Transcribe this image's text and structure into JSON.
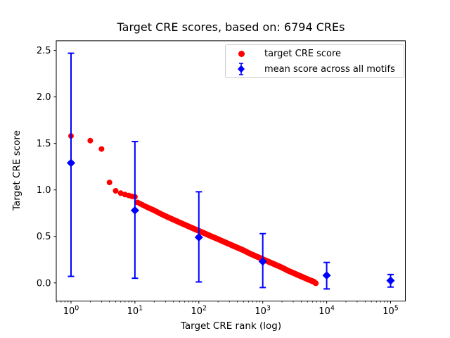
{
  "figure": {
    "background": "#ffffff",
    "spine_color": "#000000",
    "legend_border_color": "#cccccc"
  },
  "chart_data": {
    "type": "scatter",
    "title": "Target CRE scores, based on: 6794 CREs",
    "xlabel": "Target CRE rank (log)",
    "ylabel": "Target CRE score",
    "x_scale": "log",
    "grid": false,
    "legend_position": "upper right",
    "n_cres": 6794,
    "xlim_log10": [
      -0.231,
      5.231
    ],
    "ylim": [
      -0.195,
      2.604
    ],
    "x_tick_base": "10",
    "x_tick_exponents": [
      0,
      1,
      2,
      3,
      4,
      5
    ],
    "y_tick_labels": [
      "0.0",
      "0.5",
      "1.0",
      "1.5",
      "2.0",
      "2.5"
    ],
    "series": [
      {
        "name": "target CRE score",
        "marker": "circle",
        "color": "#ff0000",
        "total_points": 6794,
        "x_range": [
          1,
          6794
        ],
        "anchor_points": [
          [
            1,
            1.58
          ],
          [
            2,
            1.53
          ],
          [
            3,
            1.44
          ],
          [
            4,
            1.08
          ],
          [
            5,
            0.99
          ],
          [
            6,
            0.965
          ],
          [
            7,
            0.95
          ],
          [
            8,
            0.94
          ],
          [
            9,
            0.93
          ],
          [
            10,
            0.925
          ],
          [
            11,
            0.865
          ],
          [
            13,
            0.84
          ],
          [
            16,
            0.81
          ],
          [
            20,
            0.78
          ],
          [
            25,
            0.745
          ],
          [
            32,
            0.71
          ],
          [
            40,
            0.68
          ],
          [
            50,
            0.65
          ],
          [
            63,
            0.62
          ],
          [
            79,
            0.59
          ],
          [
            100,
            0.56
          ],
          [
            126,
            0.53
          ],
          [
            158,
            0.5
          ],
          [
            200,
            0.47
          ],
          [
            251,
            0.44
          ],
          [
            316,
            0.41
          ],
          [
            398,
            0.38
          ],
          [
            501,
            0.35
          ],
          [
            631,
            0.315
          ],
          [
            794,
            0.285
          ],
          [
            1000,
            0.255
          ],
          [
            1259,
            0.225
          ],
          [
            1585,
            0.195
          ],
          [
            1995,
            0.165
          ],
          [
            2512,
            0.13
          ],
          [
            3162,
            0.1
          ],
          [
            3981,
            0.07
          ],
          [
            5012,
            0.04
          ],
          [
            6310,
            0.012
          ],
          [
            6794,
            -0.005
          ]
        ]
      },
      {
        "name": "mean score across all motifs",
        "marker": "diamond",
        "color": "#0000ff",
        "points": [
          {
            "x": 1,
            "mean": 1.29,
            "low": 0.07,
            "high": 2.47
          },
          {
            "x": 10,
            "mean": 0.78,
            "low": 0.05,
            "high": 1.52
          },
          {
            "x": 100,
            "mean": 0.49,
            "low": 0.01,
            "high": 0.98
          },
          {
            "x": 1000,
            "mean": 0.23,
            "low": -0.05,
            "high": 0.53
          },
          {
            "x": 10000,
            "mean": 0.08,
            "low": -0.065,
            "high": 0.22
          },
          {
            "x": 100000,
            "mean": 0.025,
            "low": -0.045,
            "high": 0.09
          }
        ]
      }
    ]
  }
}
